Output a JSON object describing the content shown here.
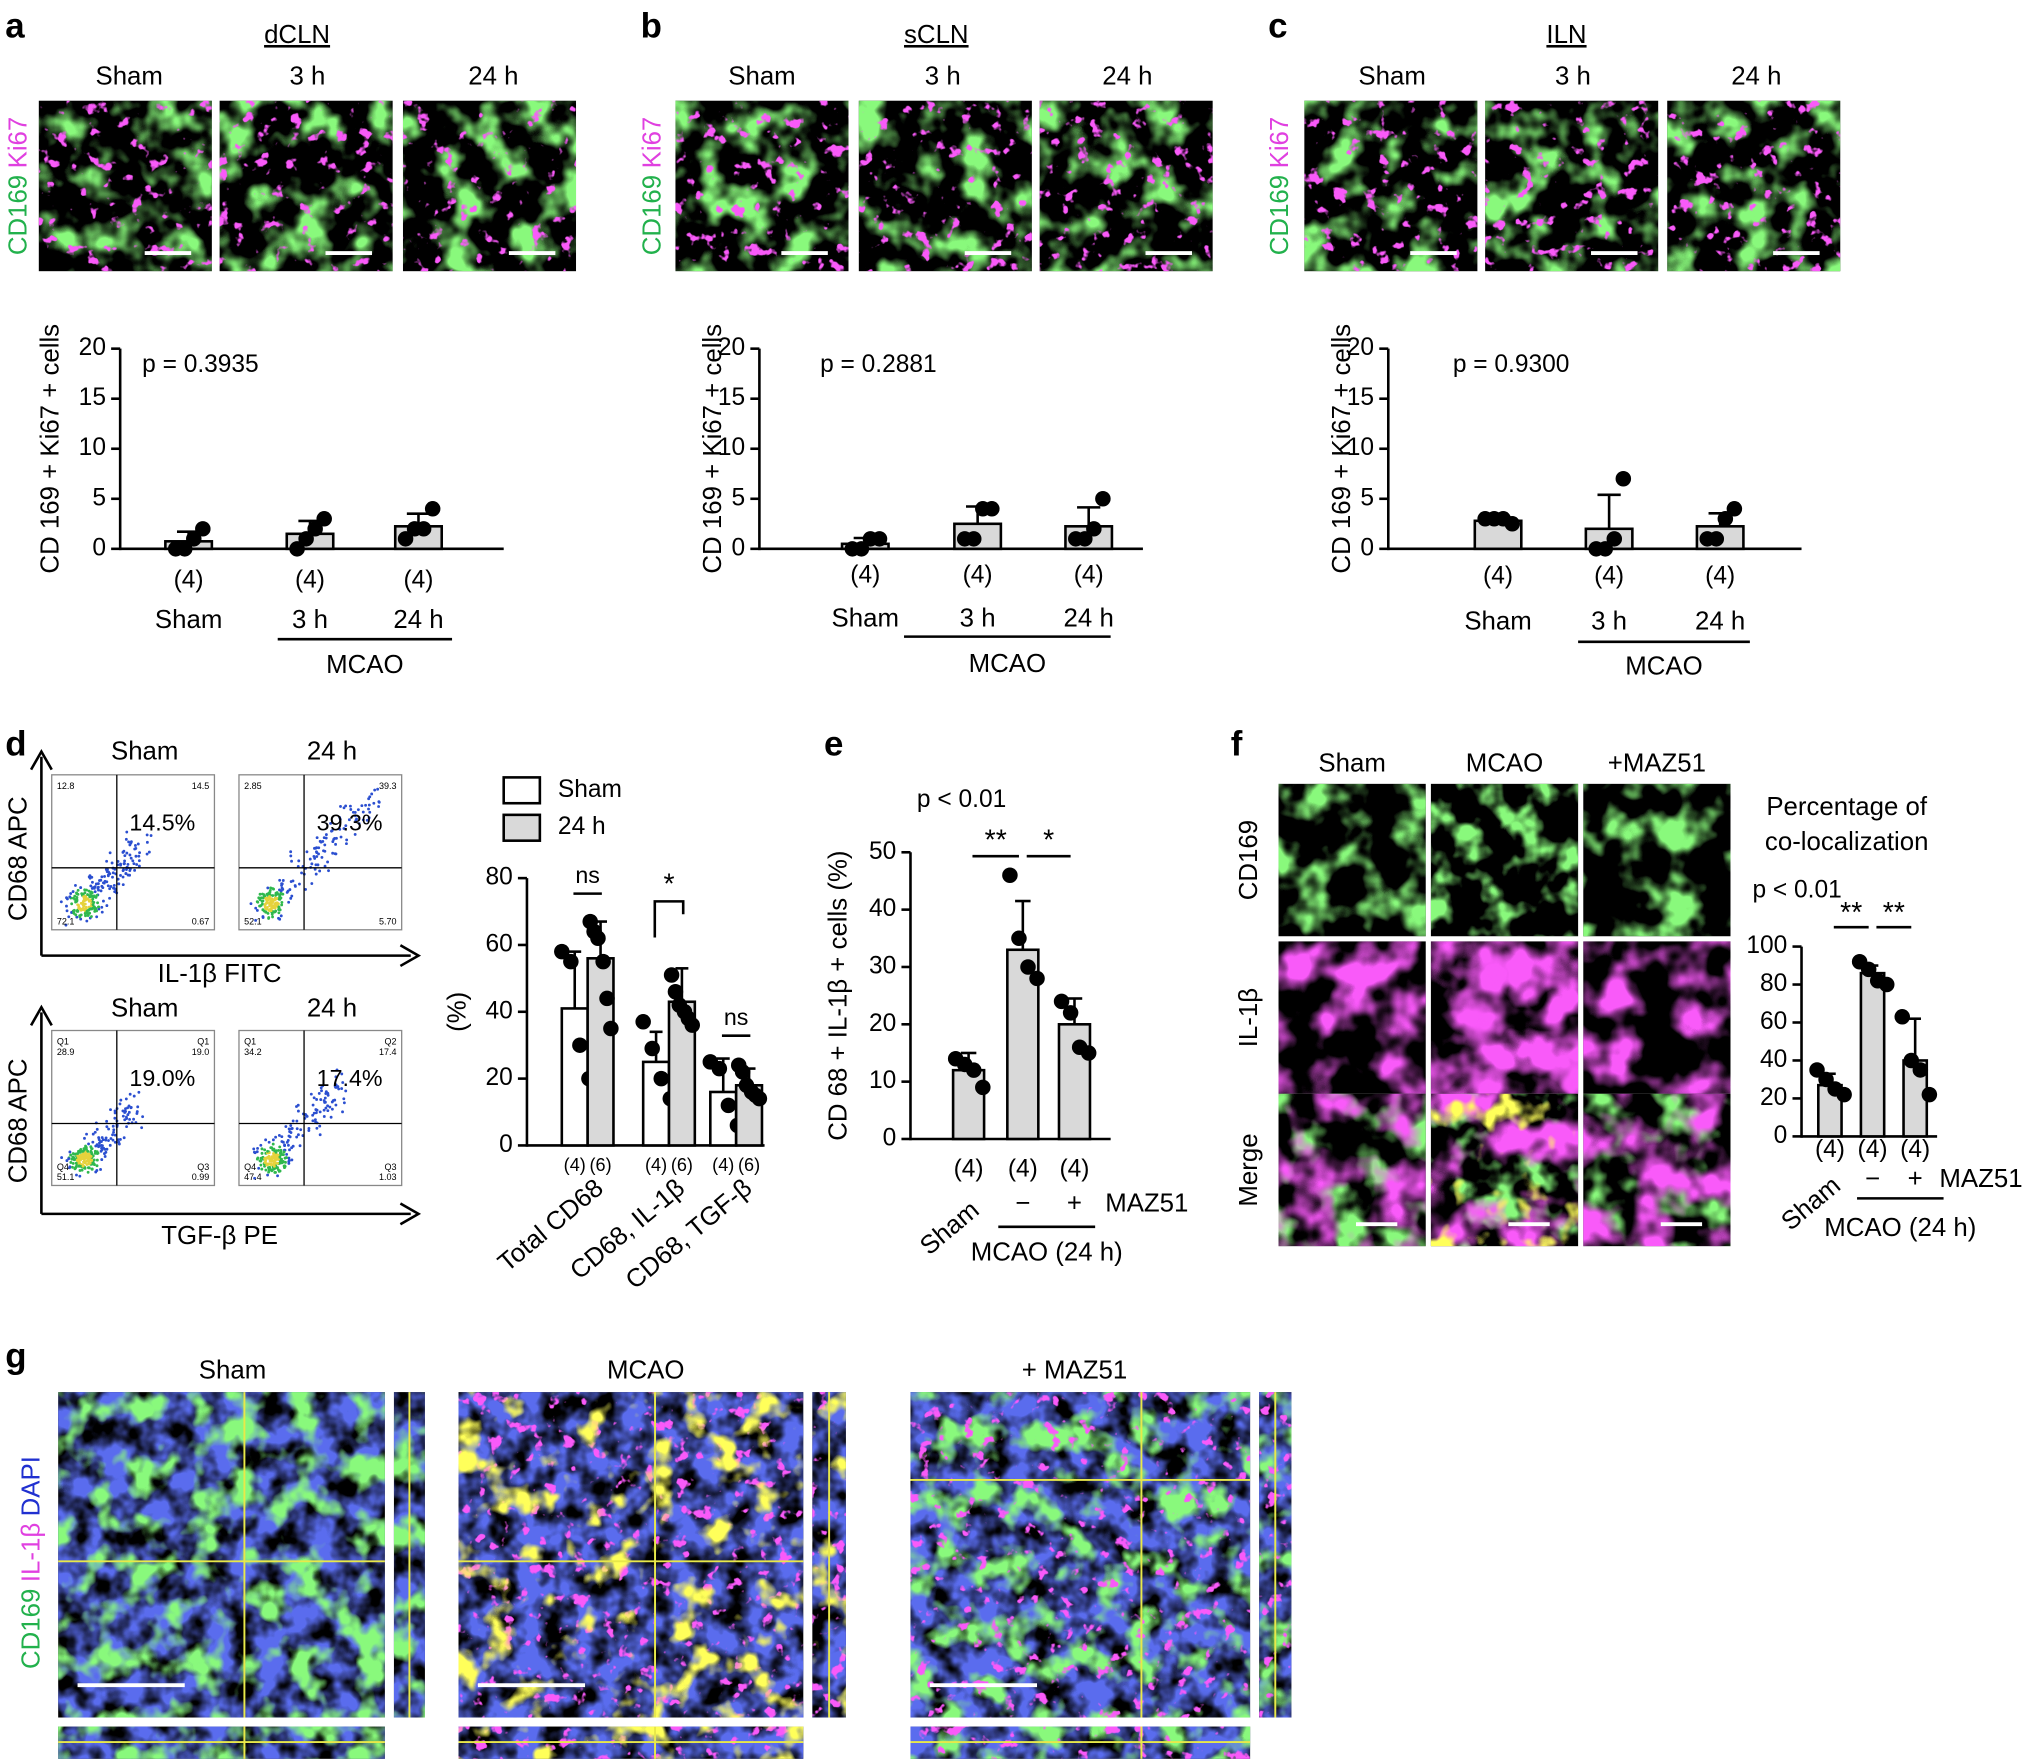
{
  "panel_labels": [
    "a",
    "b",
    "c",
    "d",
    "e",
    "f",
    "g"
  ],
  "micrographs": [
    {
      "title": "dCLN",
      "columns": [
        "Sham",
        "3 h",
        "24 h"
      ],
      "stains": [
        "CD169",
        "Ki67"
      ]
    },
    {
      "title": "sCLN",
      "columns": [
        "Sham",
        "3 h",
        "24 h"
      ],
      "stains": [
        "CD169",
        "Ki67"
      ]
    },
    {
      "title": "ILN",
      "columns": [
        "Sham",
        "3 h",
        "24 h"
      ],
      "stains": [
        "CD169",
        "Ki67"
      ]
    }
  ],
  "flow": {
    "columns": [
      "Sham",
      "24 h"
    ],
    "rows": [
      {
        "y_label": "CD68 APC",
        "x_label": "IL-1β FITC",
        "plots": [
          {
            "quadrants": [
              "12.8",
              "14.5",
              "72.1",
              "0.67"
            ],
            "percent": "14.5%"
          },
          {
            "quadrants": [
              "2.85",
              "39.3",
              "52.1",
              "5.70"
            ],
            "percent": "39.3%"
          }
        ]
      },
      {
        "y_label": "CD68 APC",
        "x_label": "TGF-β PE",
        "plots": [
          {
            "quadrant_names": [
              "Q1",
              "Q1",
              "Q4",
              "Q3"
            ],
            "quadrants": [
              "28.9",
              "19.0",
              "51.1",
              "0.99"
            ],
            "percent": "19.0%"
          },
          {
            "quadrant_names": [
              "Q1",
              "Q2",
              "Q4",
              "Q3"
            ],
            "quadrants": [
              "34.2",
              "17.4",
              "47.4",
              "1.03"
            ],
            "percent": "17.4%"
          }
        ]
      }
    ]
  },
  "costain": {
    "columns": [
      "Sham",
      "MCAO",
      "+MAZ51"
    ],
    "rows": [
      "CD169",
      "IL-1β",
      "Merge"
    ]
  },
  "orthogonal": {
    "columns": [
      "Sham",
      "MCAO",
      "+ MAZ51"
    ],
    "stains": [
      "CD169",
      "IL-1β",
      "DAPI"
    ]
  },
  "chart_data": [
    {
      "type": "bar",
      "y_label": "CD 169 + Ki67 + cells",
      "annotation": "p = 0.3935",
      "categories": [
        "Sham",
        "3 h",
        "24 h"
      ],
      "n_labels": [
        "(4)",
        "(4)",
        "(4)"
      ],
      "group_label": "MCAO",
      "values": [
        0.75,
        1.5,
        2.25
      ],
      "errors": [
        0.96,
        1.29,
        1.26
      ],
      "points": [
        [
          0,
          0,
          1,
          2
        ],
        [
          0,
          1,
          2,
          3
        ],
        [
          1,
          2,
          2,
          4
        ]
      ],
      "color": "#d9d9d9",
      "ylim": [
        0,
        20
      ],
      "yticks": [
        0,
        5,
        10,
        15,
        20
      ]
    },
    {
      "type": "bar",
      "y_label": "CD 169 + Ki67 + cells",
      "annotation": "p = 0.2881",
      "categories": [
        "Sham",
        "3 h",
        "24 h"
      ],
      "n_labels": [
        "(4)",
        "(4)",
        "(4)"
      ],
      "group_label": "MCAO",
      "values": [
        0.5,
        2.5,
        2.25
      ],
      "errors": [
        0.58,
        1.73,
        1.89
      ],
      "points": [
        [
          0,
          0,
          1,
          1
        ],
        [
          1,
          1,
          4,
          4
        ],
        [
          1,
          1,
          2,
          5
        ]
      ],
      "color": "#d9d9d9",
      "ylim": [
        0,
        20
      ],
      "yticks": [
        0,
        5,
        10,
        15,
        20
      ]
    },
    {
      "type": "bar",
      "y_label": "CD 169 + Ki67 + cells",
      "annotation": "p = 0.9300",
      "categories": [
        "Sham",
        "3 h",
        "24 h"
      ],
      "n_labels": [
        "(4)",
        "(4)",
        "(4)"
      ],
      "group_label": "MCAO",
      "values": [
        2.8,
        2.0,
        2.25
      ],
      "errors": [
        0.25,
        3.4,
        1.3
      ],
      "points": [
        [
          3,
          3,
          3,
          2.5
        ],
        [
          0,
          0,
          1,
          7
        ],
        [
          1,
          1,
          3,
          4
        ]
      ],
      "color": "#d9d9d9",
      "ylim": [
        0,
        20
      ],
      "yticks": [
        0,
        5,
        10,
        15,
        20
      ]
    },
    {
      "type": "grouped_bar",
      "y_label": "(%)",
      "categories": [
        "Total CD68",
        "CD68, IL-1β",
        "CD68, TGF-β"
      ],
      "series": [
        {
          "name": "Sham",
          "color": "#ffffff",
          "n_label": "(4)",
          "values": [
            41,
            25,
            16
          ],
          "errors": [
            17,
            9,
            10
          ],
          "points": [
            [
              58,
              55,
              30,
              20
            ],
            [
              37,
              29,
              20,
              14
            ],
            [
              25,
              23,
              12,
              6
            ]
          ]
        },
        {
          "name": "24 h",
          "color": "#d9d9d9",
          "n_label": "(6)",
          "values": [
            56,
            43,
            18
          ],
          "errors": [
            11,
            10,
            5
          ],
          "points": [
            [
              67,
              64,
              62,
              55,
              44,
              35
            ],
            [
              51,
              46,
              42,
              40,
              38,
              36
            ],
            [
              24,
              22,
              18,
              16,
              15,
              14
            ]
          ]
        }
      ],
      "significance": [
        "ns",
        "*",
        "ns"
      ],
      "ylim": [
        0,
        80
      ],
      "yticks": [
        0,
        20,
        40,
        60,
        80
      ]
    },
    {
      "type": "bar",
      "y_label": "CD 68 + IL-1β + cells (%)",
      "annotation": "p < 0.01",
      "categories": [
        "Sham",
        "−",
        "+"
      ],
      "n_labels": [
        "(4)",
        "(4)",
        "(4)"
      ],
      "treatment_label": "MAZ51",
      "group_label": "MCAO (24 h)",
      "values": [
        12,
        33,
        20
      ],
      "errors": [
        3,
        8.5,
        4.5
      ],
      "points": [
        [
          14,
          13,
          12,
          9
        ],
        [
          46,
          35,
          30,
          28
        ],
        [
          24,
          22,
          16,
          15
        ]
      ],
      "significance": [
        "**",
        "*"
      ],
      "color": "#d9d9d9",
      "ylim": [
        0,
        50
      ],
      "yticks": [
        0,
        10,
        20,
        30,
        40,
        50
      ]
    },
    {
      "type": "bar",
      "title": [
        "Percentage of",
        "co-localization"
      ],
      "annotation": "p < 0.01",
      "categories": [
        "Sham",
        "−",
        "+"
      ],
      "n_labels": [
        "(4)",
        "(4)",
        "(4)"
      ],
      "treatment_label": "MAZ51",
      "group_label": "MCAO (24 h)",
      "values": [
        27,
        86,
        40
      ],
      "errors": [
        6,
        4,
        22
      ],
      "points": [
        [
          35,
          30,
          25,
          22
        ],
        [
          92,
          88,
          82,
          80
        ],
        [
          63,
          40,
          35,
          22
        ]
      ],
      "significance": [
        "**",
        "**"
      ],
      "color": "#d9d9d9",
      "ylim": [
        0,
        100
      ],
      "yticks": [
        0,
        20,
        40,
        60,
        80,
        100
      ]
    }
  ]
}
